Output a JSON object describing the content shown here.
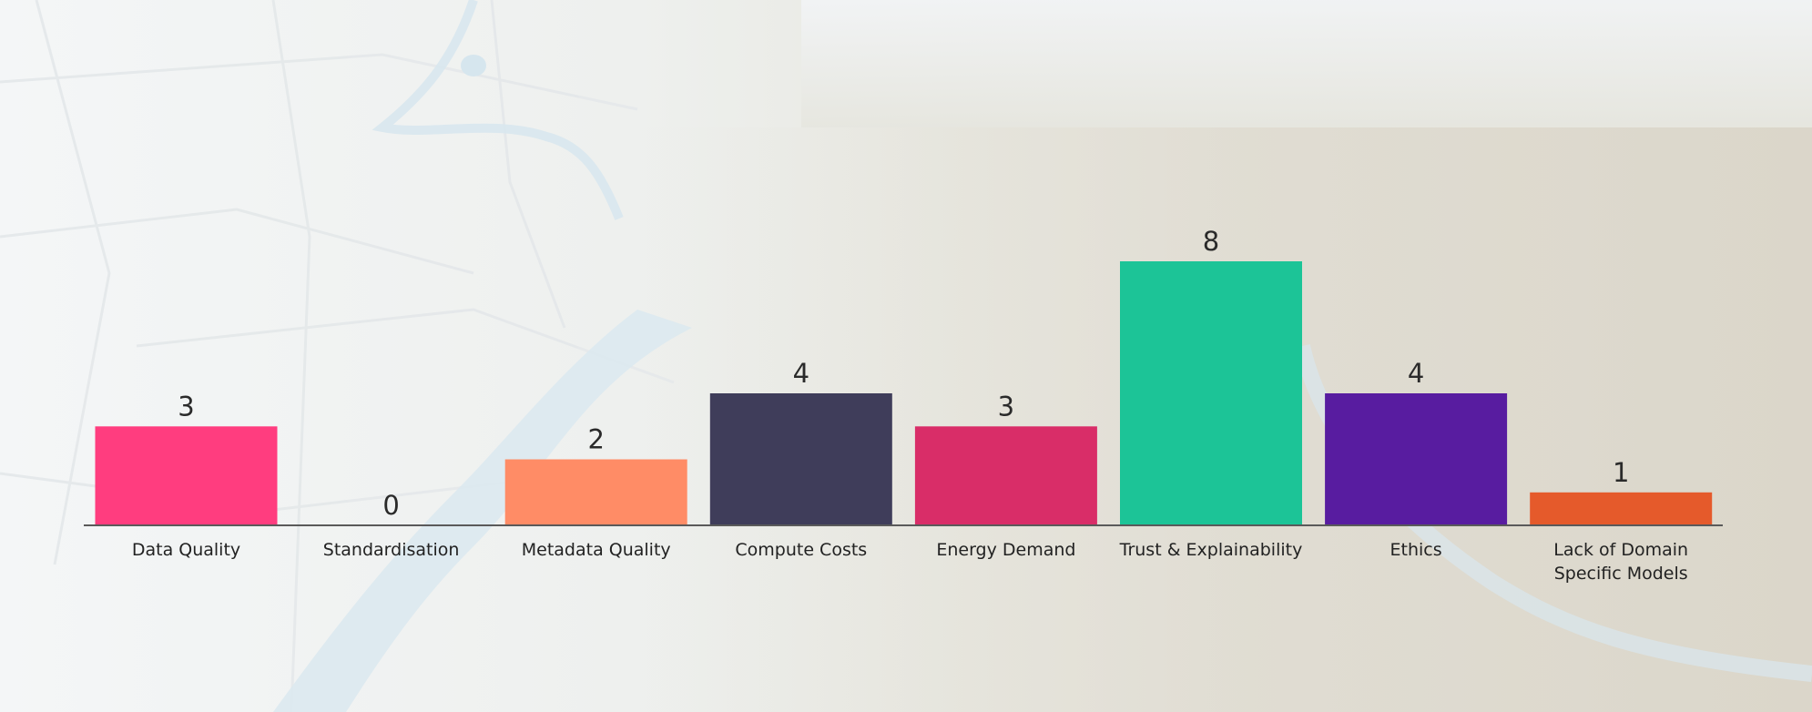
{
  "chart_data": {
    "type": "bar",
    "title": "",
    "xlabel": "",
    "ylabel": "",
    "ylim": [
      0,
      8
    ],
    "grid": false,
    "legend": "none",
    "categories": [
      [
        "Data Quality"
      ],
      [
        "Standardisation"
      ],
      [
        "Metadata Quality"
      ],
      [
        "Compute Costs"
      ],
      [
        "Energy Demand"
      ],
      [
        "Trust & Explainability"
      ],
      [
        "Ethics"
      ],
      [
        "Lack of Domain",
        "Specific Models"
      ]
    ],
    "values": [
      3,
      0,
      2,
      4,
      3,
      8,
      4,
      1
    ],
    "colors": [
      "#ff3d7f",
      "#9c9c9c",
      "#ff8c66",
      "#3f3d5a",
      "#d92d68",
      "#1cc497",
      "#581ca0",
      "#e55a2b"
    ],
    "axis_color": "#5a5a5a"
  }
}
